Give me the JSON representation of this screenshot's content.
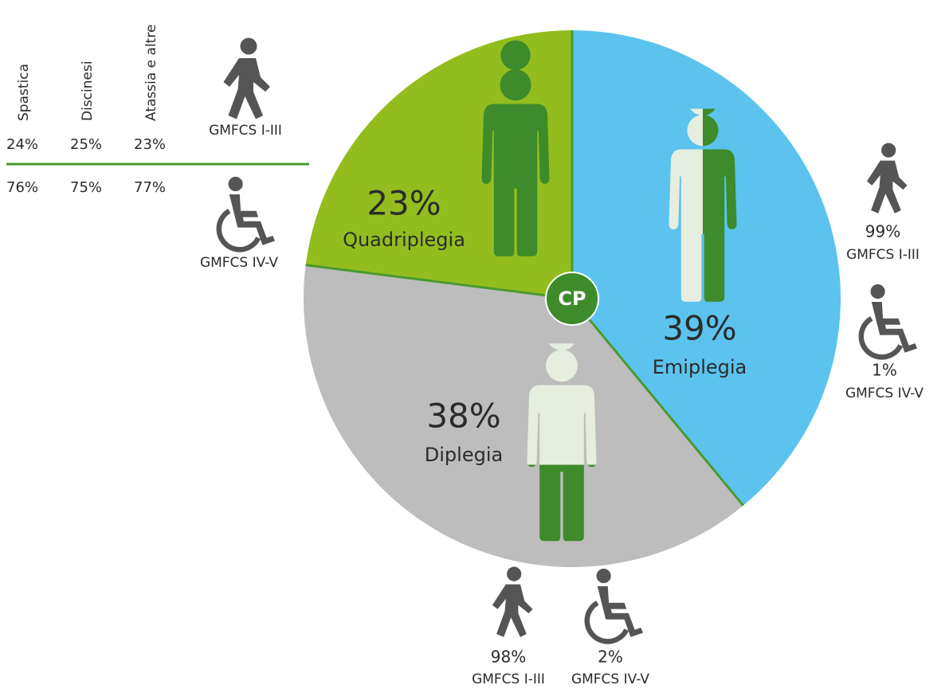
{
  "chart_data": {
    "type": "pie",
    "center_label": "CP",
    "categories": [
      "Quadriplegia",
      "Emiplegia",
      "Diplegia"
    ],
    "values": [
      23,
      39,
      38
    ],
    "value_labels": [
      "23%",
      "39%",
      "38%"
    ],
    "colors": [
      "#93bd1e",
      "#5bc3ee",
      "#bdbdbd"
    ]
  },
  "table": {
    "columns": [
      "Spastica",
      "Discinesi",
      "Atassia e altre"
    ],
    "rows": [
      {
        "label": "GMFCS I-III",
        "values": [
          "24%",
          "25%",
          "23%"
        ]
      },
      {
        "label": "GMFCS IV-V",
        "values": [
          "76%",
          "75%",
          "77%"
        ]
      }
    ]
  },
  "gmfcs": [
    {
      "percent": "99%",
      "level": "GMFCS I-III"
    },
    {
      "percent": "1%",
      "level": "GMFCS IV-V"
    },
    {
      "percent": "98%",
      "level": "GMFCS I-III"
    },
    {
      "percent": "2%",
      "level": "GMFCS IV-V"
    }
  ]
}
